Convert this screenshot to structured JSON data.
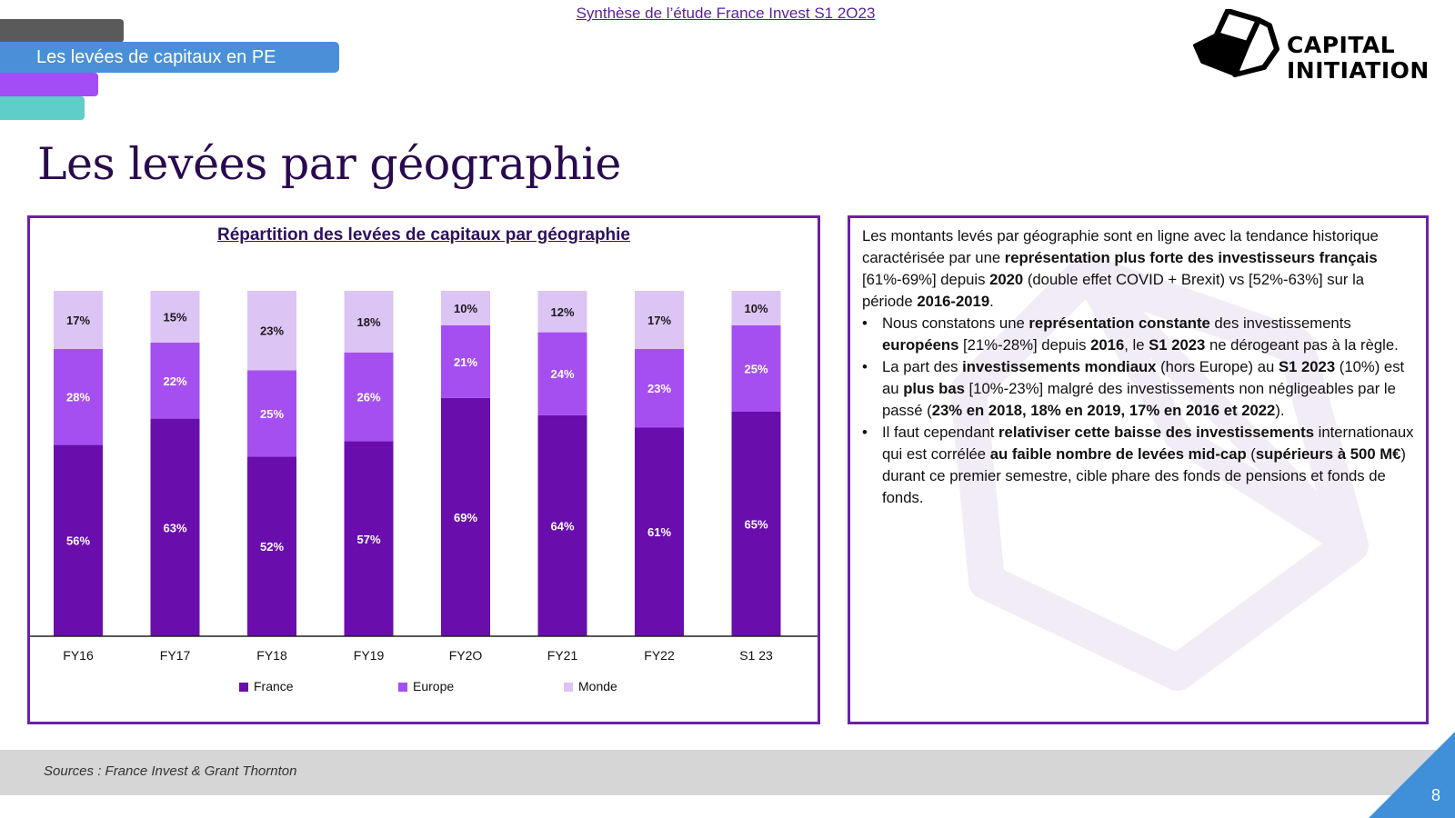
{
  "header": {
    "section_tab": "Les levées de capitaux en PE",
    "study_link": "Synthèse de l’étude France Invest S1 2O23",
    "logo_line1": "CAPITAL",
    "logo_line2": "INITIATION"
  },
  "page_title": "Les levées par géographie",
  "chart_data": {
    "type": "bar",
    "stacked": true,
    "percent_stacked": true,
    "title": "Répartition des levées de capitaux par géographie",
    "categories": [
      "FY16",
      "FY17",
      "FY18",
      "FY19",
      "FY2O",
      "FY21",
      "FY22",
      "S1 23"
    ],
    "series": [
      {
        "name": "France",
        "color": "#6a0dad",
        "values": [
          56,
          63,
          52,
          57,
          69,
          64,
          61,
          65
        ],
        "labels": [
          "56%",
          "63%",
          "52%",
          "57%",
          "69%",
          "64%",
          "61%",
          "65%"
        ]
      },
      {
        "name": "Europe",
        "color": "#a64ff0",
        "values": [
          28,
          22,
          25,
          26,
          21,
          24,
          23,
          25
        ],
        "labels": [
          "28%",
          "22%",
          "25%",
          "26%",
          "21%",
          "24%",
          "23%",
          "25%"
        ]
      },
      {
        "name": "Monde",
        "color": "#dcc4f5",
        "values": [
          17,
          15,
          23,
          18,
          10,
          12,
          17,
          10
        ],
        "labels": [
          "17%",
          "15%",
          "23%",
          "18%",
          "10%",
          "12%",
          "17%",
          "10%"
        ]
      }
    ],
    "ylim": [
      0,
      100
    ],
    "legend": "bottom"
  },
  "commentary": {
    "intro": [
      {
        "t": "Les montants levés par géographie sont en ligne avec la tendance historique caractérisée par une ",
        "b": false
      },
      {
        "t": "représentation plus forte des investisseurs français",
        "b": true
      },
      {
        "t": " [61%-69%] depuis ",
        "b": false
      },
      {
        "t": "2020",
        "b": true
      },
      {
        "t": " (double effet COVID + Brexit) vs [52%-63%] sur la période ",
        "b": false
      },
      {
        "t": "2016-2019",
        "b": true
      },
      {
        "t": ".",
        "b": false
      }
    ],
    "bullets": [
      [
        {
          "t": "Nous constatons une ",
          "b": false
        },
        {
          "t": "représentation constante",
          "b": true
        },
        {
          "t": " des investissements ",
          "b": false
        },
        {
          "t": "européens",
          "b": true
        },
        {
          "t": " [21%-28%] depuis ",
          "b": false
        },
        {
          "t": "2016",
          "b": true
        },
        {
          "t": ", le ",
          "b": false
        },
        {
          "t": "S1 2023",
          "b": true
        },
        {
          "t": " ne dérogeant pas à la règle.",
          "b": false
        }
      ],
      [
        {
          "t": "La part des ",
          "b": false
        },
        {
          "t": "investissements mondiaux",
          "b": true
        },
        {
          "t": " (hors Europe) au ",
          "b": false
        },
        {
          "t": "S1 2023",
          "b": true
        },
        {
          "t": " (10%) est au ",
          "b": false
        },
        {
          "t": "plus bas",
          "b": true
        },
        {
          "t": " [10%-23%] malgré des investissements non négligeables par le passé (",
          "b": false
        },
        {
          "t": "23% en 2018, 18% en 2019, 17% en 2016 et 2022",
          "b": true
        },
        {
          "t": ").",
          "b": false
        }
      ],
      [
        {
          "t": "Il faut cependant ",
          "b": false
        },
        {
          "t": "relativiser cette baisse des investissements",
          "b": true
        },
        {
          "t": " internationaux qui est corrélée ",
          "b": false
        },
        {
          "t": "au faible nombre de levées mid-cap",
          "b": true
        },
        {
          "t": " (",
          "b": false
        },
        {
          "t": "supérieurs à 500 M€",
          "b": true
        },
        {
          "t": ") durant ce premier semestre, cible phare des fonds de pensions et fonds de fonds.",
          "b": false
        }
      ]
    ]
  },
  "footer": {
    "sources": "Sources : France Invest & Grant Thornton",
    "page_number": "8"
  }
}
